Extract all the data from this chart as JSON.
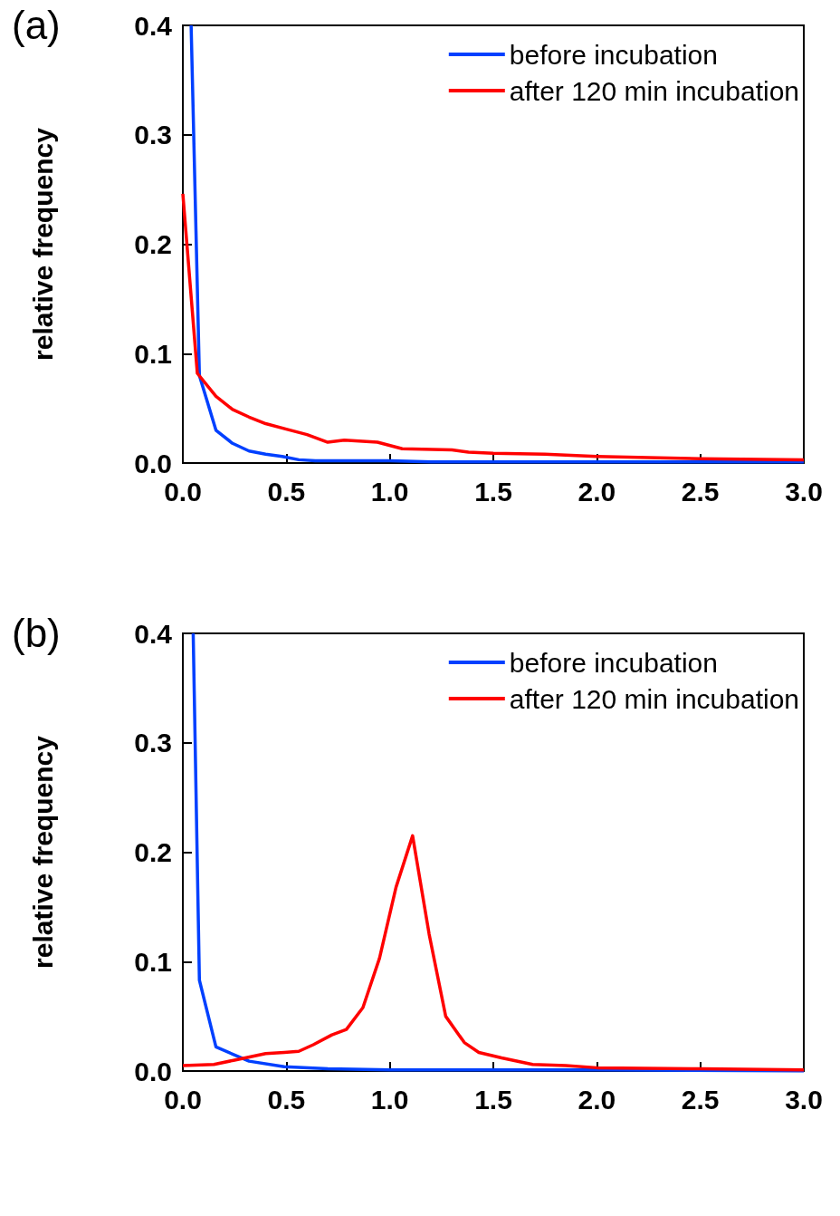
{
  "chart_data": [
    {
      "type": "line",
      "title": "(a)",
      "ylabel": "relative frequency",
      "xlim": [
        0,
        3
      ],
      "xticks": [
        {
          "value": 0,
          "label": "0.0"
        },
        0.5,
        {
          "value": 1,
          "label": "1.0"
        },
        1.5,
        {
          "value": 2,
          "label": "2.0"
        },
        2.5,
        {
          "value": 3,
          "label": "3.0"
        }
      ],
      "ylim": [
        0,
        0.4
      ],
      "yticks": [
        {
          "value": 0,
          "label": "0.0"
        },
        0.1,
        0.2,
        0.3,
        0.4
      ],
      "legend": "top right",
      "series": [
        {
          "name": "before incubation",
          "color": "#0040ff",
          "x": [
            0.04,
            0.08,
            0.16,
            0.24,
            0.32,
            0.4,
            0.48,
            0.56,
            0.64,
            0.8,
            1.0,
            1.2,
            1.5,
            2.0,
            2.5,
            3.0
          ],
          "values": [
            0.4,
            0.08,
            0.03,
            0.018,
            0.011,
            0.008,
            0.006,
            0.003,
            0.002,
            0.002,
            0.002,
            0.001,
            0.001,
            0.001,
            0.001,
            0.001
          ]
        },
        {
          "name": "after 120 min incubation",
          "color": "#ff0000",
          "x": [
            0,
            0.07,
            0.16,
            0.24,
            0.32,
            0.4,
            0.5,
            0.6,
            0.7,
            0.78,
            0.94,
            1.06,
            1.3,
            1.38,
            1.5,
            1.75,
            2.0,
            2.25,
            2.5,
            3.0
          ],
          "values": [
            0.246,
            0.082,
            0.061,
            0.049,
            0.042,
            0.036,
            0.031,
            0.026,
            0.019,
            0.021,
            0.019,
            0.013,
            0.012,
            0.01,
            0.009,
            0.008,
            0.006,
            0.005,
            0.004,
            0.003
          ]
        }
      ]
    },
    {
      "type": "line",
      "title": "(b)",
      "ylabel": "relative frequency",
      "xlim": [
        0,
        3
      ],
      "xticks": [
        {
          "value": 0,
          "label": "0.0"
        },
        0.5,
        {
          "value": 1,
          "label": "1.0"
        },
        1.5,
        {
          "value": 2,
          "label": "2.0"
        },
        2.5,
        {
          "value": 3,
          "label": "3.0"
        }
      ],
      "ylim": [
        0,
        0.4
      ],
      "yticks": [
        {
          "value": 0,
          "label": "0.0"
        },
        0.1,
        0.2,
        0.3,
        0.4
      ],
      "legend": "top right",
      "series": [
        {
          "name": "before incubation",
          "color": "#0040ff",
          "x": [
            0.05,
            0.08,
            0.16,
            0.32,
            0.49,
            0.7,
            1.0,
            1.5,
            2.0,
            3.0
          ],
          "values": [
            0.4,
            0.083,
            0.022,
            0.009,
            0.004,
            0.002,
            0.001,
            0.001,
            0.001,
            0.0
          ]
        },
        {
          "name": "after 120 min incubation",
          "color": "#ff0000",
          "x": [
            0,
            0.15,
            0.25,
            0.4,
            0.49,
            0.56,
            0.63,
            0.72,
            0.79,
            0.87,
            0.95,
            1.03,
            1.11,
            1.19,
            1.27,
            1.36,
            1.43,
            1.54,
            1.69,
            1.85,
            2.0,
            2.5,
            3.0
          ],
          "values": [
            0.005,
            0.006,
            0.01,
            0.016,
            0.017,
            0.018,
            0.024,
            0.033,
            0.038,
            0.058,
            0.103,
            0.168,
            0.215,
            0.125,
            0.05,
            0.026,
            0.017,
            0.012,
            0.006,
            0.005,
            0.003,
            0.002,
            0.001
          ]
        }
      ]
    }
  ]
}
